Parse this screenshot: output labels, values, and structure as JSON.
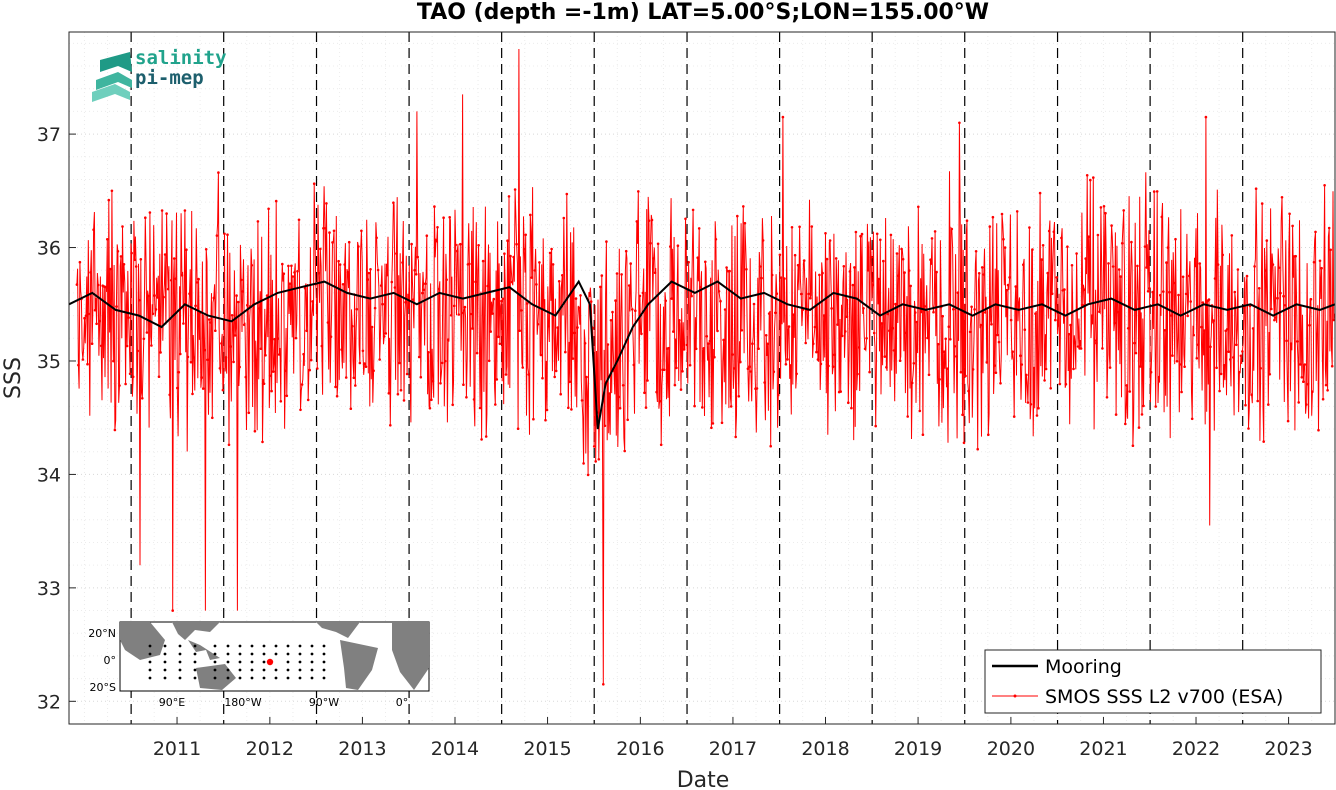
{
  "chart_data": {
    "type": "line",
    "title": "TAO (depth =-1m) LAT=5.00°S;LON=155.00°W",
    "xlabel": "Date",
    "ylabel": "SSS",
    "xlim": [
      "2010-05-01",
      "2023-12-31"
    ],
    "ylim": [
      31.8,
      37.9
    ],
    "x_ticks": [
      "2011",
      "2012",
      "2013",
      "2014",
      "2015",
      "2016",
      "2017",
      "2018",
      "2019",
      "2020",
      "2021",
      "2022",
      "2023"
    ],
    "y_ticks": [
      32,
      33,
      34,
      35,
      36,
      37
    ],
    "grid": "dotted",
    "year_boundaries": [
      "2011-01-01",
      "2012-01-01",
      "2013-01-01",
      "2014-01-01",
      "2015-01-01",
      "2016-01-01",
      "2017-01-01",
      "2018-01-01",
      "2019-01-01",
      "2020-01-01",
      "2021-01-01",
      "2022-01-01",
      "2023-01-01"
    ],
    "legend_position": "bottom-right",
    "series": [
      {
        "name": "Mooring",
        "color": "#000000",
        "x": [
          "2010-05-01",
          "2010-08-01",
          "2010-11-01",
          "2011-02-01",
          "2011-05-01",
          "2011-08-01",
          "2011-11-01",
          "2012-02-01",
          "2012-05-01",
          "2012-08-01",
          "2012-11-01",
          "2013-02-01",
          "2013-05-01",
          "2013-08-01",
          "2013-11-01",
          "2014-02-01",
          "2014-05-01",
          "2014-08-01",
          "2014-11-01",
          "2015-02-01",
          "2015-05-01",
          "2015-08-01",
          "2015-11-01",
          "2015-12-15",
          "2016-01-15",
          "2016-02-15",
          "2016-04-01",
          "2016-06-01",
          "2016-08-01",
          "2016-11-01",
          "2017-02-01",
          "2017-05-01",
          "2017-08-01",
          "2017-11-01",
          "2018-02-01",
          "2018-05-01",
          "2018-08-01",
          "2018-11-01",
          "2019-02-01",
          "2019-05-01",
          "2019-08-01",
          "2019-11-01",
          "2020-02-01",
          "2020-05-01",
          "2020-08-01",
          "2020-11-01",
          "2021-02-01",
          "2021-05-01",
          "2021-08-01",
          "2021-11-01",
          "2022-02-01",
          "2022-05-01",
          "2022-08-01",
          "2022-11-01",
          "2023-02-01",
          "2023-05-01",
          "2023-08-01",
          "2023-11-01",
          "2023-12-31"
        ],
        "y": [
          35.5,
          35.6,
          35.45,
          35.4,
          35.3,
          35.5,
          35.4,
          35.35,
          35.5,
          35.6,
          35.65,
          35.7,
          35.6,
          35.55,
          35.6,
          35.5,
          35.6,
          35.55,
          35.6,
          35.65,
          35.5,
          35.4,
          35.7,
          35.5,
          34.4,
          34.8,
          35.0,
          35.3,
          35.5,
          35.7,
          35.6,
          35.7,
          35.55,
          35.6,
          35.5,
          35.45,
          35.6,
          35.55,
          35.4,
          35.5,
          35.45,
          35.5,
          35.4,
          35.5,
          35.45,
          35.5,
          35.4,
          35.5,
          35.55,
          35.45,
          35.5,
          35.4,
          35.5,
          35.45,
          35.5,
          35.4,
          35.5,
          35.45,
          35.5
        ]
      },
      {
        "name": "SMOS SSS L2 v700 (ESA)",
        "color": "#ff0000",
        "x_range": [
          "2010-06-01",
          "2023-12-31"
        ],
        "baseline": 35.4,
        "typical_range": [
          34.2,
          36.7
        ],
        "extremes": [
          {
            "x": "2011-02-05",
            "y": 33.2
          },
          {
            "x": "2011-06-15",
            "y": 32.8
          },
          {
            "x": "2011-10-20",
            "y": 32.8
          },
          {
            "x": "2012-02-25",
            "y": 32.8
          },
          {
            "x": "2014-02-01",
            "y": 37.2
          },
          {
            "x": "2014-08-01",
            "y": 37.35
          },
          {
            "x": "2015-03-10",
            "y": 37.75
          },
          {
            "x": "2016-02-05",
            "y": 32.15
          },
          {
            "x": "2018-01-15",
            "y": 37.15
          },
          {
            "x": "2019-12-10",
            "y": 37.1
          },
          {
            "x": "2022-08-10",
            "y": 37.15
          },
          {
            "x": "2022-08-25",
            "y": 33.55
          }
        ]
      }
    ]
  },
  "logo": {
    "line1": "salinity",
    "line2": "pi-mep",
    "color1": "#21a38c",
    "color2": "#1d5f6d"
  },
  "inset_map": {
    "lat_labels": [
      "20°N",
      "0°",
      "20°S"
    ],
    "lon_labels": [
      "90°E",
      "180°W",
      "90°W",
      "0°"
    ],
    "land_color": "#808080",
    "highlight_color": "#ff0000"
  }
}
